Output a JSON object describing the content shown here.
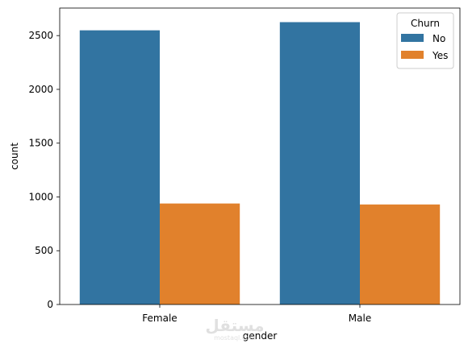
{
  "chart_data": {
    "type": "bar",
    "categories": [
      "Female",
      "Male"
    ],
    "series": [
      {
        "name": "No",
        "values": [
          2549,
          2625
        ],
        "color": "#3274a1"
      },
      {
        "name": "Yes",
        "values": [
          939,
          930
        ],
        "color": "#e1812c"
      }
    ],
    "xlabel": "gender",
    "ylabel": "count",
    "ylim": [
      0,
      2756
    ],
    "yticks": [
      0,
      500,
      1000,
      1500,
      2000,
      2500
    ],
    "legend": {
      "title": "Churn",
      "placement": "top-right"
    },
    "grid": false
  },
  "watermark": {
    "text": "مستقل",
    "subtext": "mostaql.com"
  }
}
